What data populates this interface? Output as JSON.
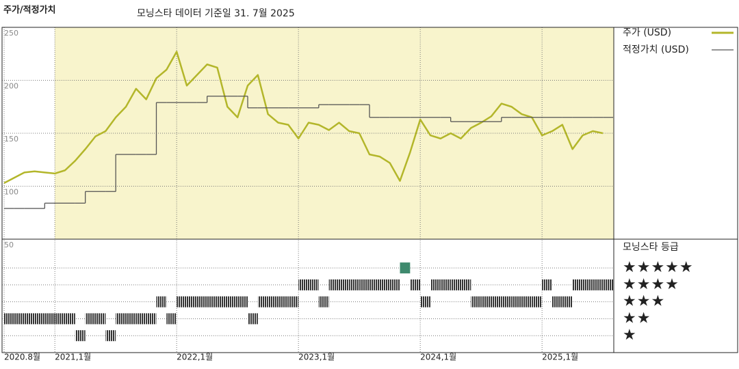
{
  "chart_data": [
    {
      "type": "line",
      "title": "주가/적정가치",
      "subtitle": "모닝스타 데이터 기준일 31. 7월 2025",
      "x": [
        "2020-08",
        "2020-09",
        "2020-10",
        "2020-11",
        "2020-12",
        "2021-01",
        "2021-02",
        "2021-03",
        "2021-04",
        "2021-05",
        "2021-06",
        "2021-07",
        "2021-08",
        "2021-09",
        "2021-10",
        "2021-11",
        "2021-12",
        "2022-01",
        "2022-02",
        "2022-03",
        "2022-04",
        "2022-05",
        "2022-06",
        "2022-07",
        "2022-08",
        "2022-09",
        "2022-10",
        "2022-11",
        "2022-12",
        "2023-01",
        "2023-02",
        "2023-03",
        "2023-04",
        "2023-05",
        "2023-06",
        "2023-07",
        "2023-08",
        "2023-09",
        "2023-10",
        "2023-11",
        "2023-12",
        "2024-01",
        "2024-02",
        "2024-03",
        "2024-04",
        "2024-05",
        "2024-06",
        "2024-07",
        "2024-08",
        "2024-09",
        "2024-10",
        "2024-11",
        "2024-12",
        "2025-01",
        "2025-02",
        "2025-03",
        "2025-04",
        "2025-05",
        "2025-06",
        "2025-07"
      ],
      "xlim": [
        "2020-08",
        "2025-08"
      ],
      "xticks": [
        {
          "value": "2020-08",
          "label": "2020.8월"
        },
        {
          "value": "2021-01",
          "label": "2021,1월"
        },
        {
          "value": "2022-01",
          "label": "2022,1월"
        },
        {
          "value": "2023-01",
          "label": "2023,1월"
        },
        {
          "value": "2024-01",
          "label": "2024,1월"
        },
        {
          "value": "2025-01",
          "label": "2025,1월"
        }
      ],
      "ylim": [
        50,
        250
      ],
      "yticks": [
        50,
        100,
        150,
        200,
        250
      ],
      "grid": true,
      "series": [
        {
          "name": "주가 (USD)",
          "color": "#b3b62a",
          "values": [
            103,
            108,
            113,
            114,
            113,
            112,
            115,
            124,
            135,
            147,
            152,
            165,
            175,
            192,
            182,
            202,
            210,
            227,
            195,
            205,
            215,
            212,
            175,
            165,
            195,
            205,
            168,
            160,
            158,
            145,
            160,
            158,
            153,
            160,
            152,
            150,
            130,
            128,
            122,
            105,
            132,
            163,
            148,
            145,
            150,
            145,
            155,
            160,
            166,
            178,
            175,
            168,
            165,
            148,
            152,
            158,
            135,
            148,
            152,
            150
          ]
        },
        {
          "name": "적정가치 (USD)",
          "color": "#555555",
          "step": true,
          "values": [
            79,
            79,
            79,
            79,
            84,
            84,
            84,
            84,
            95,
            95,
            95,
            130,
            130,
            130,
            130,
            179,
            179,
            179,
            179,
            179,
            185,
            185,
            185,
            185,
            174,
            174,
            174,
            174,
            174,
            174,
            174,
            177,
            177,
            177,
            177,
            177,
            165,
            165,
            165,
            165,
            165,
            165,
            165,
            165,
            161,
            161,
            161,
            161,
            161,
            165,
            165,
            165,
            165,
            165,
            165,
            165,
            165,
            165,
            165,
            165
          ]
        }
      ]
    },
    {
      "type": "rating",
      "title": "모닝스타 등급",
      "color": "#333333",
      "top_color": "#3f8a6e",
      "ylim": [
        0,
        6.7
      ],
      "yticks": [
        {
          "value": 1,
          "label": "★"
        },
        {
          "value": 2,
          "label": "★★"
        },
        {
          "value": 3,
          "label": "★★★"
        },
        {
          "value": 4,
          "label": "★★★★"
        },
        {
          "value": 5,
          "label": "★★★★★"
        }
      ],
      "values": [
        2,
        2,
        2,
        2,
        2,
        2,
        2,
        1,
        2,
        2,
        1,
        2,
        2,
        2,
        2,
        3,
        2,
        3,
        3,
        3,
        3,
        3,
        3,
        3,
        2,
        3,
        3,
        3,
        3,
        4,
        4,
        3,
        4,
        4,
        4,
        4,
        4,
        4,
        4,
        5,
        4,
        3,
        4,
        4,
        4,
        4,
        3,
        3,
        3,
        3,
        3,
        3,
        3,
        4,
        3,
        3,
        4,
        4,
        4,
        4
      ]
    }
  ]
}
